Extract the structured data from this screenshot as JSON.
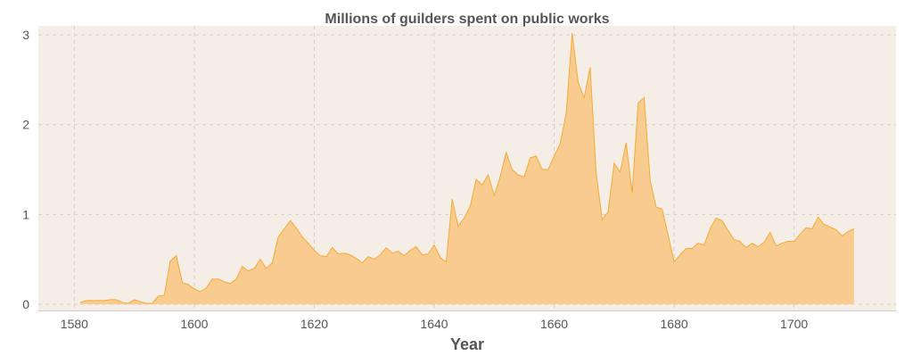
{
  "chart_data": {
    "type": "area",
    "title": "Millions of guilders spent on public works",
    "xlabel": "Year",
    "ylabel": "",
    "xlim": [
      1574,
      1717
    ],
    "ylim": [
      -0.07,
      3.1
    ],
    "xticks": [
      1580,
      1600,
      1620,
      1640,
      1660,
      1680,
      1700
    ],
    "yticks": [
      0,
      1,
      2,
      3
    ],
    "grid": true,
    "colors": {
      "plot_bg": "#f5eee6",
      "fill": "#f8cc8f",
      "line": "#f5a93a",
      "axis": "#cccccc"
    },
    "x": [
      1581,
      1582,
      1583,
      1584,
      1585,
      1586,
      1587,
      1588,
      1589,
      1590,
      1591,
      1592,
      1593,
      1594,
      1595,
      1596,
      1597,
      1598,
      1599,
      1600,
      1601,
      1602,
      1603,
      1604,
      1605,
      1606,
      1607,
      1608,
      1609,
      1610,
      1611,
      1612,
      1613,
      1614,
      1615,
      1616,
      1617,
      1618,
      1619,
      1620,
      1621,
      1622,
      1623,
      1624,
      1625,
      1626,
      1627,
      1628,
      1629,
      1630,
      1631,
      1632,
      1633,
      1634,
      1635,
      1636,
      1637,
      1638,
      1639,
      1640,
      1641,
      1642,
      1643,
      1644,
      1645,
      1646,
      1647,
      1648,
      1649,
      1650,
      1651,
      1652,
      1653,
      1654,
      1655,
      1656,
      1657,
      1658,
      1659,
      1660,
      1661,
      1662,
      1663,
      1664,
      1665,
      1666,
      1667,
      1668,
      1669,
      1670,
      1671,
      1672,
      1673,
      1674,
      1675,
      1676,
      1677,
      1678,
      1679,
      1680,
      1681,
      1682,
      1683,
      1684,
      1685,
      1686,
      1687,
      1688,
      1689,
      1690,
      1691,
      1692,
      1693,
      1694,
      1695,
      1696,
      1697,
      1698,
      1699,
      1700,
      1701,
      1702,
      1703,
      1704,
      1705,
      1706,
      1707,
      1708,
      1709,
      1710
    ],
    "y": [
      0.02,
      0.04,
      0.04,
      0.04,
      0.04,
      0.05,
      0.05,
      0.02,
      0.01,
      0.05,
      0.03,
      0.01,
      0.01,
      0.09,
      0.1,
      0.48,
      0.54,
      0.24,
      0.22,
      0.17,
      0.14,
      0.18,
      0.28,
      0.28,
      0.25,
      0.23,
      0.28,
      0.42,
      0.37,
      0.4,
      0.5,
      0.4,
      0.46,
      0.75,
      0.84,
      0.93,
      0.85,
      0.75,
      0.68,
      0.6,
      0.54,
      0.53,
      0.63,
      0.56,
      0.57,
      0.55,
      0.51,
      0.46,
      0.53,
      0.5,
      0.55,
      0.63,
      0.57,
      0.59,
      0.54,
      0.6,
      0.64,
      0.55,
      0.56,
      0.66,
      0.52,
      0.47,
      1.17,
      0.87,
      0.96,
      1.09,
      1.39,
      1.33,
      1.44,
      1.21,
      1.42,
      1.69,
      1.5,
      1.44,
      1.42,
      1.63,
      1.65,
      1.5,
      1.5,
      1.65,
      1.79,
      2.12,
      3.02,
      2.47,
      2.3,
      2.64,
      1.46,
      0.94,
      1.03,
      1.57,
      1.47,
      1.8,
      1.24,
      2.24,
      2.3,
      1.38,
      1.08,
      1.06,
      0.77,
      0.47,
      0.55,
      0.62,
      0.62,
      0.68,
      0.66,
      0.84,
      0.96,
      0.93,
      0.82,
      0.72,
      0.7,
      0.63,
      0.68,
      0.64,
      0.69,
      0.8,
      0.65,
      0.68,
      0.7,
      0.7,
      0.78,
      0.85,
      0.84,
      0.97,
      0.89,
      0.86,
      0.83,
      0.76,
      0.81,
      0.84
    ]
  }
}
